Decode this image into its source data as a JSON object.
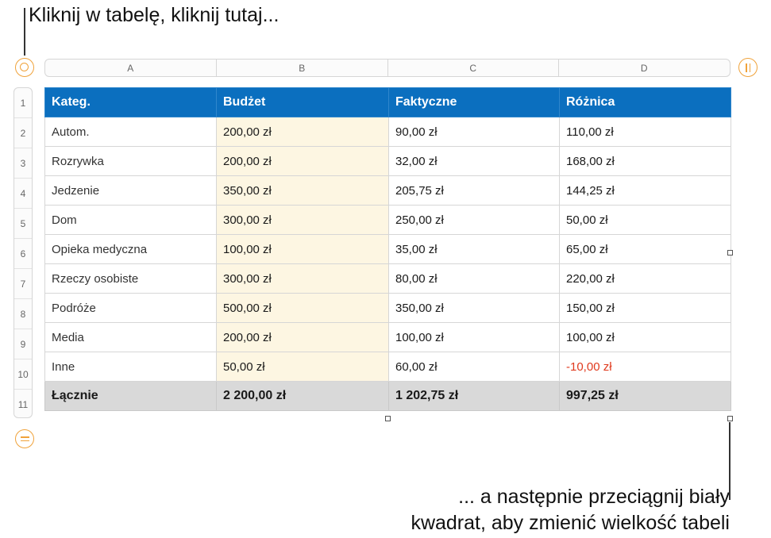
{
  "callouts": {
    "top": "Kliknij w tabelę, kliknij tutaj...",
    "bottom_line1": "... a następnie przeciągnij biały",
    "bottom_line2": "kwadrat, aby zmienić wielkość tabeli"
  },
  "column_labels": [
    "A",
    "B",
    "C",
    "D"
  ],
  "row_numbers": [
    "1",
    "2",
    "3",
    "4",
    "5",
    "6",
    "7",
    "8",
    "9",
    "10",
    "11"
  ],
  "table": {
    "headers": [
      "Kateg.",
      "Budżet",
      "Faktyczne",
      "Różnica"
    ],
    "rows": [
      [
        "Autom.",
        "200,00 zł",
        "90,00 zł",
        "110,00 zł"
      ],
      [
        "Rozrywka",
        "200,00 zł",
        "32,00 zł",
        "168,00 zł"
      ],
      [
        "Jedzenie",
        "350,00 zł",
        "205,75 zł",
        "144,25 zł"
      ],
      [
        "Dom",
        "300,00 zł",
        "250,00 zł",
        "50,00 zł"
      ],
      [
        "Opieka medyczna",
        "100,00 zł",
        "35,00 zł",
        "65,00 zł"
      ],
      [
        "Rzeczy osobiste",
        "300,00 zł",
        "80,00 zł",
        "220,00 zł"
      ],
      [
        "Podróże",
        "500,00 zł",
        "350,00 zł",
        "150,00 zł"
      ],
      [
        "Media",
        "200,00 zł",
        "100,00 zł",
        "100,00 zł"
      ],
      [
        "Inne",
        "50,00 zł",
        "60,00 zł",
        "-10,00 zł"
      ]
    ],
    "total": [
      "Łącznie",
      "2 200,00 zł",
      "1 202,75 zł",
      "997,25 zł"
    ]
  },
  "colors": {
    "header_bg": "#0b6fbf",
    "budget_bg": "#fdf6e2",
    "total_bg": "#d9d9d9",
    "negative_text": "#e03a1e",
    "control_accent": "#f0a23a"
  },
  "icons": {
    "select_table": "circle-select-icon",
    "add_columns": "double-bar-icon",
    "add_rows": "double-line-icon"
  }
}
